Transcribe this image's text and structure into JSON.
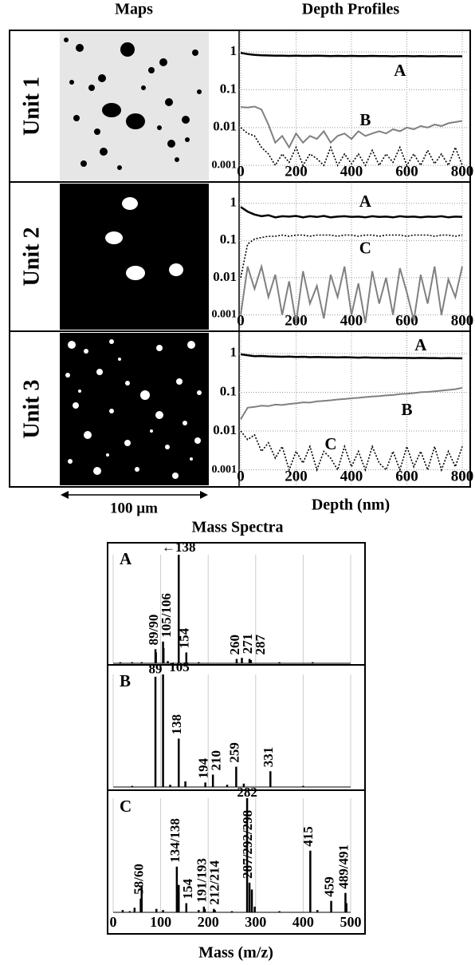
{
  "figure": {
    "maps_title": "Maps",
    "profiles_title": "Depth Profiles",
    "scale_label": "100 µm",
    "profiles_xlabel": "Depth (nm)",
    "spectra_title": "Mass Spectra",
    "spectra_xlabel": "Mass (m/z)"
  },
  "chart_data": [
    {
      "type": "line",
      "label": "Unit 1",
      "ylog": true,
      "grid": true,
      "xlim": [
        0,
        800
      ],
      "ylim": [
        0.0004,
        3.4
      ],
      "xticks": [
        0,
        200,
        400,
        600,
        800
      ],
      "yticks": [
        0.001,
        0.01,
        0.1,
        1
      ],
      "x": [
        0,
        25,
        50,
        75,
        100,
        125,
        150,
        175,
        200,
        225,
        250,
        275,
        300,
        325,
        350,
        375,
        400,
        425,
        450,
        475,
        500,
        525,
        550,
        575,
        600,
        625,
        650,
        675,
        700,
        725,
        750,
        775,
        800
      ],
      "series": [
        {
          "name": "A",
          "color": "#000000",
          "style": "solid",
          "values": [
            0.95,
            0.88,
            0.84,
            0.82,
            0.81,
            0.8,
            0.8,
            0.79,
            0.8,
            0.79,
            0.79,
            0.8,
            0.79,
            0.78,
            0.79,
            0.78,
            0.79,
            0.78,
            0.78,
            0.79,
            0.78,
            0.78,
            0.77,
            0.78,
            0.78,
            0.77,
            0.78,
            0.77,
            0.77,
            0.78,
            0.77,
            0.77,
            0.77
          ]
        },
        {
          "name": "B",
          "color": "#808080",
          "style": "solid",
          "values": [
            0.035,
            0.034,
            0.036,
            0.03,
            0.012,
            0.004,
            0.006,
            0.003,
            0.007,
            0.004,
            0.006,
            0.005,
            0.008,
            0.004,
            0.006,
            0.007,
            0.005,
            0.008,
            0.006,
            0.007,
            0.008,
            0.007,
            0.009,
            0.008,
            0.01,
            0.009,
            0.011,
            0.01,
            0.012,
            0.011,
            0.013,
            0.014,
            0.015
          ]
        },
        {
          "color": "#000000",
          "style": "dotted",
          "values": [
            0.01,
            0.007,
            0.006,
            0.003,
            0.002,
            0.001,
            0.002,
            0.0012,
            0.003,
            0.001,
            0.002,
            0.0015,
            0.001,
            0.003,
            0.001,
            0.002,
            0.0011,
            0.002,
            0.001,
            0.0025,
            0.001,
            0.002,
            0.0012,
            0.003,
            0.001,
            0.002,
            0.001,
            0.0025,
            0.0011,
            0.002,
            0.001,
            0.003,
            0.001
          ]
        }
      ]
    },
    {
      "type": "line",
      "label": "Unit 2",
      "ylog": true,
      "grid": true,
      "xlim": [
        0,
        800
      ],
      "ylim": [
        0.0004,
        3.4
      ],
      "xticks": [
        0,
        200,
        400,
        600,
        800
      ],
      "yticks": [
        0.001,
        0.01,
        0.1,
        1
      ],
      "x": [
        0,
        25,
        50,
        75,
        100,
        125,
        150,
        175,
        200,
        225,
        250,
        275,
        300,
        325,
        350,
        375,
        400,
        425,
        450,
        475,
        500,
        525,
        550,
        575,
        600,
        625,
        650,
        675,
        700,
        725,
        750,
        775,
        800
      ],
      "series": [
        {
          "name": "A",
          "color": "#000000",
          "style": "solid",
          "values": [
            0.8,
            0.6,
            0.5,
            0.45,
            0.48,
            0.42,
            0.45,
            0.44,
            0.46,
            0.42,
            0.45,
            0.43,
            0.46,
            0.42,
            0.44,
            0.45,
            0.43,
            0.44,
            0.42,
            0.45,
            0.43,
            0.44,
            0.42,
            0.45,
            0.43,
            0.44,
            0.42,
            0.44,
            0.43,
            0.45,
            0.42,
            0.44,
            0.43
          ]
        },
        {
          "name": "C",
          "color": "#000000",
          "style": "dotted",
          "values": [
            0.01,
            0.08,
            0.11,
            0.12,
            0.13,
            0.13,
            0.14,
            0.13,
            0.14,
            0.14,
            0.13,
            0.14,
            0.14,
            0.14,
            0.13,
            0.14,
            0.14,
            0.13,
            0.14,
            0.14,
            0.13,
            0.14,
            0.14,
            0.14,
            0.13,
            0.14,
            0.14,
            0.14,
            0.13,
            0.14,
            0.14,
            0.13,
            0.14
          ]
        },
        {
          "color": "#808080",
          "style": "solid",
          "values": [
            0.001,
            0.02,
            0.005,
            0.02,
            0.003,
            0.012,
            0.001,
            0.008,
            0.0006,
            0.015,
            0.002,
            0.006,
            0.0008,
            0.012,
            0.003,
            0.02,
            0.001,
            0.007,
            0.0006,
            0.015,
            0.002,
            0.01,
            0.001,
            0.018,
            0.004,
            0.0007,
            0.012,
            0.002,
            0.02,
            0.001,
            0.009,
            0.003,
            0.02
          ]
        }
      ]
    },
    {
      "type": "line",
      "label": "Unit 3",
      "ylog": true,
      "grid": true,
      "xlim": [
        0,
        800
      ],
      "ylim": [
        0.0004,
        3.4
      ],
      "xticks": [
        0,
        200,
        400,
        600,
        800
      ],
      "yticks": [
        0.001,
        0.01,
        0.1,
        1
      ],
      "x": [
        0,
        25,
        50,
        75,
        100,
        125,
        150,
        175,
        200,
        225,
        250,
        275,
        300,
        325,
        350,
        375,
        400,
        425,
        450,
        475,
        500,
        525,
        550,
        575,
        600,
        625,
        650,
        675,
        700,
        725,
        750,
        775,
        800
      ],
      "series": [
        {
          "name": "A",
          "color": "#000000",
          "style": "solid",
          "values": [
            0.95,
            0.9,
            0.85,
            0.86,
            0.84,
            0.83,
            0.82,
            0.83,
            0.81,
            0.82,
            0.8,
            0.81,
            0.8,
            0.8,
            0.79,
            0.8,
            0.79,
            0.78,
            0.79,
            0.78,
            0.78,
            0.77,
            0.78,
            0.77,
            0.77,
            0.76,
            0.77,
            0.76,
            0.76,
            0.75,
            0.76,
            0.75,
            0.75
          ]
        },
        {
          "name": "B",
          "color": "#808080",
          "style": "solid",
          "values": [
            0.02,
            0.04,
            0.042,
            0.045,
            0.044,
            0.048,
            0.047,
            0.05,
            0.052,
            0.055,
            0.054,
            0.058,
            0.06,
            0.062,
            0.065,
            0.067,
            0.07,
            0.072,
            0.075,
            0.078,
            0.08,
            0.083,
            0.085,
            0.09,
            0.092,
            0.095,
            0.1,
            0.102,
            0.106,
            0.11,
            0.115,
            0.12,
            0.13
          ]
        },
        {
          "name": "C",
          "color": "#000000",
          "style": "dotted",
          "values": [
            0.01,
            0.006,
            0.008,
            0.003,
            0.005,
            0.002,
            0.004,
            0.001,
            0.003,
            0.0015,
            0.004,
            0.001,
            0.003,
            0.002,
            0.001,
            0.004,
            0.0012,
            0.003,
            0.001,
            0.004,
            0.0015,
            0.001,
            0.003,
            0.001,
            0.004,
            0.0012,
            0.003,
            0.001,
            0.004,
            0.001,
            0.003,
            0.0012,
            0.004
          ]
        }
      ]
    },
    {
      "type": "spectrum",
      "label": "A",
      "xlim": [
        0,
        500
      ],
      "ylim": [
        0,
        100
      ],
      "color": "#000000",
      "x": [
        15,
        40,
        60,
        89,
        90,
        105,
        106,
        115,
        138,
        154,
        180,
        260,
        271,
        287,
        290,
        350,
        420
      ],
      "values": [
        1,
        1,
        1,
        13,
        10,
        20,
        14,
        2,
        100,
        10,
        1,
        4,
        5,
        4,
        3,
        1,
        1
      ],
      "annotations": [
        {
          "text": "89/90",
          "x": 89,
          "orientation": "vertical"
        },
        {
          "text": "105/106",
          "x": 105,
          "orientation": "vertical"
        },
        {
          "text": "←138",
          "x": 138,
          "orientation": "horizontal"
        },
        {
          "text": "154",
          "x": 154,
          "orientation": "vertical"
        },
        {
          "text": "260",
          "x": 260,
          "orientation": "vertical"
        },
        {
          "text": "271",
          "x": 271,
          "orientation": "vertical"
        },
        {
          "text": "287",
          "x": 287,
          "orientation": "vertical"
        }
      ]
    },
    {
      "type": "spectrum",
      "label": "B",
      "xlim": [
        0,
        500
      ],
      "ylim": [
        0,
        100
      ],
      "color": "#000000",
      "x": [
        40,
        89,
        105,
        120,
        138,
        152,
        194,
        210,
        240,
        259,
        275,
        331,
        400
      ],
      "values": [
        1,
        98,
        100,
        2,
        43,
        5,
        4,
        11,
        2,
        18,
        3,
        14,
        1
      ],
      "annotations": [
        {
          "text": "89",
          "x": 89,
          "orientation": "horizontal"
        },
        {
          "text": "105",
          "x": 105,
          "orientation": "horizontal"
        },
        {
          "text": "138",
          "x": 138,
          "orientation": "vertical"
        },
        {
          "text": "194",
          "x": 194,
          "orientation": "vertical"
        },
        {
          "text": "210",
          "x": 210,
          "orientation": "vertical"
        },
        {
          "text": "259",
          "x": 259,
          "orientation": "vertical"
        },
        {
          "text": "331",
          "x": 331,
          "orientation": "vertical"
        }
      ]
    },
    {
      "type": "spectrum",
      "label": "C",
      "xlim": [
        0,
        500
      ],
      "ylim": [
        0,
        100
      ],
      "xticks": [
        0,
        100,
        200,
        300,
        400,
        500
      ],
      "color": "#000000",
      "x": [
        20,
        35,
        45,
        58,
        60,
        91,
        105,
        134,
        138,
        154,
        180,
        191,
        193,
        212,
        214,
        250,
        282,
        287,
        292,
        298,
        350,
        415,
        430,
        459,
        489,
        491
      ],
      "values": [
        2,
        1,
        4,
        12,
        23,
        3,
        2,
        40,
        24,
        8,
        2,
        5,
        3,
        3,
        2,
        1,
        100,
        26,
        20,
        5,
        1,
        54,
        2,
        10,
        17,
        8
      ],
      "annotations": [
        {
          "text": "58/60",
          "x": 58,
          "orientation": "vertical"
        },
        {
          "text": "134/138",
          "x": 134,
          "orientation": "vertical"
        },
        {
          "text": "154",
          "x": 154,
          "orientation": "vertical"
        },
        {
          "text": "191/193",
          "x": 191,
          "orientation": "vertical"
        },
        {
          "text": "212/214",
          "x": 212,
          "orientation": "vertical"
        },
        {
          "text": "282",
          "x": 282,
          "orientation": "horizontal"
        },
        {
          "text": "287/292/298",
          "x": 287,
          "orientation": "vertical"
        },
        {
          "text": "415",
          "x": 415,
          "orientation": "vertical"
        },
        {
          "text": "459",
          "x": 459,
          "orientation": "vertical"
        },
        {
          "text": "489/491",
          "x": 489,
          "orientation": "vertical"
        }
      ]
    }
  ]
}
